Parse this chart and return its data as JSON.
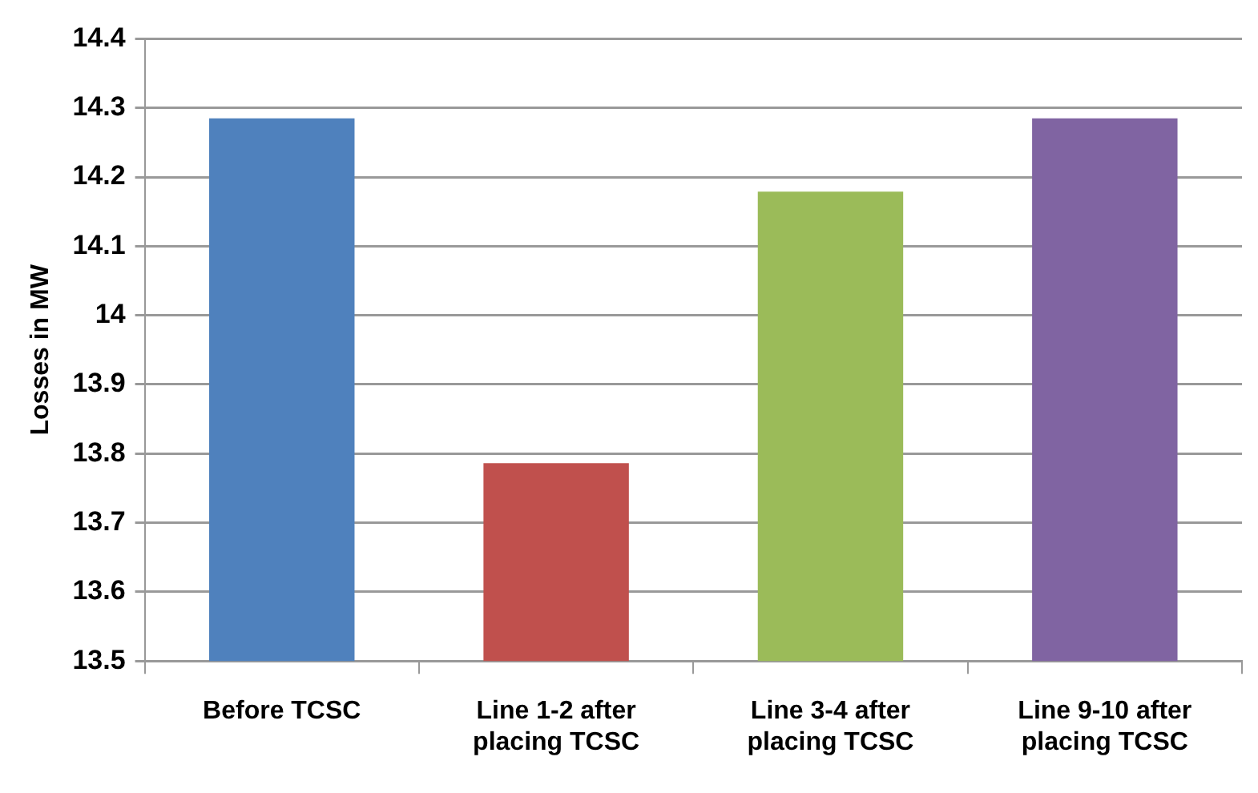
{
  "chart_data": {
    "type": "bar",
    "ylabel": "Losses in MW",
    "categories": [
      "Before TCSC",
      "Line 1-2 after placing TCSC",
      "Line 3-4 after placing TCSC",
      "Line 9-10 after placing TCSC"
    ],
    "values": [
      14.285,
      13.786,
      14.179,
      14.285
    ],
    "colors": [
      "#4f81bd",
      "#c0504d",
      "#9bbb59",
      "#8064a2"
    ],
    "ylim": [
      13.5,
      14.4
    ],
    "yticks": [
      13.5,
      13.6,
      13.7,
      13.8,
      13.9,
      14,
      14.1,
      14.2,
      14.3,
      14.4
    ],
    "grid": "y",
    "legend": false
  }
}
